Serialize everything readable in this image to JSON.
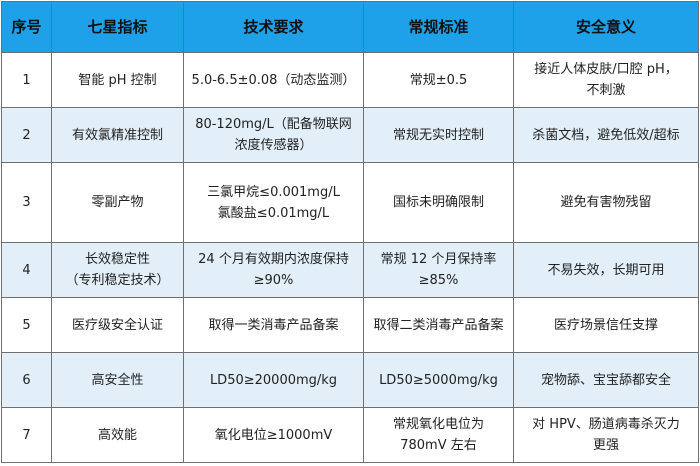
{
  "table": {
    "headers": [
      "序号",
      "七星指标",
      "技术要求",
      "常规标准",
      "安全意义"
    ],
    "rows": [
      {
        "index": "1",
        "item": [
          "智能 pH 控制"
        ],
        "spec": [
          "5.0-6.5±0.08（动态监测）"
        ],
        "normal": [
          "常规±0.5"
        ],
        "safety": [
          "接近人体皮肤/口腔 pH，",
          "不刺激"
        ]
      },
      {
        "index": "2",
        "item": [
          "有效氯精准控制"
        ],
        "spec": [
          "80-120mg/L（配备物联网",
          "浓度传感器）"
        ],
        "normal": [
          "常规无实时控制"
        ],
        "safety": [
          "杀菌文档，避免低效/超标"
        ]
      },
      {
        "index": "3",
        "item": [
          "零副产物"
        ],
        "spec": [
          "三氯甲烷≤0.001mg/L",
          "氯酸盐≤0.01mg/L"
        ],
        "normal": [
          "国标未明确限制"
        ],
        "safety": [
          "避免有害物残留"
        ]
      },
      {
        "index": "4",
        "item": [
          "长效稳定性",
          "（专利稳定技术）"
        ],
        "spec": [
          "24 个月有效期内浓度保持",
          "≥90%"
        ],
        "normal": [
          "常规 12 个月保持率",
          "≥85%"
        ],
        "safety": [
          "不易失效，长期可用"
        ]
      },
      {
        "index": "5",
        "item": [
          "医疗级安全认证"
        ],
        "spec": [
          "取得一类消毒产品备案"
        ],
        "normal": [
          "取得二类消毒产品备案"
        ],
        "safety": [
          "医疗场景信任支撑"
        ]
      },
      {
        "index": "6",
        "item": [
          "高安全性"
        ],
        "spec": [
          "LD50≥20000mg/kg"
        ],
        "normal": [
          "LD50≥5000mg/kg"
        ],
        "safety": [
          "宠物舔、宝宝舔都安全"
        ]
      },
      {
        "index": "7",
        "item": [
          "高效能"
        ],
        "spec": [
          "氧化电位≥1000mV"
        ],
        "normal": [
          "常规氧化电位为",
          "780mV 左右"
        ],
        "safety": [
          "对 HPV、肠道病毒杀灭力",
          "更强"
        ]
      }
    ]
  }
}
